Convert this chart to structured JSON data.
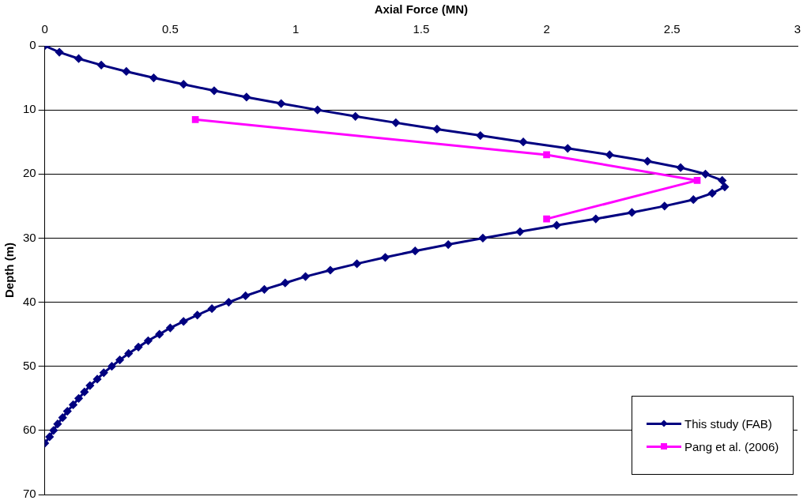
{
  "chart_data": {
    "type": "line",
    "xlabel": "Axial Force (MN)",
    "ylabel": "Depth (m)",
    "xlim": [
      0,
      3
    ],
    "xticks": [
      0,
      0.5,
      1,
      1.5,
      2,
      2.5,
      3
    ],
    "ylim": [
      70,
      0
    ],
    "yticks": [
      0,
      10,
      20,
      30,
      40,
      50,
      60,
      70
    ],
    "grid": "y",
    "legend": "bottom right",
    "series": [
      {
        "name": "This study (FAB)",
        "color": "#000080",
        "marker": "diamond",
        "x": [
          0,
          0.058,
          0.135,
          0.225,
          0.325,
          0.434,
          0.553,
          0.675,
          0.804,
          0.942,
          1.087,
          1.238,
          1.399,
          1.563,
          1.736,
          1.907,
          2.084,
          2.251,
          2.402,
          2.534,
          2.633,
          2.7,
          2.71,
          2.66,
          2.585,
          2.47,
          2.34,
          2.196,
          2.04,
          1.894,
          1.746,
          1.608,
          1.476,
          1.357,
          1.244,
          1.138,
          1.039,
          0.958,
          0.875,
          0.8,
          0.733,
          0.666,
          0.608,
          0.553,
          0.5,
          0.457,
          0.412,
          0.373,
          0.334,
          0.299,
          0.267,
          0.235,
          0.209,
          0.18,
          0.158,
          0.135,
          0.113,
          0.09,
          0.071,
          0.051,
          0.035,
          0.019,
          0
        ],
        "values": [
          0,
          1,
          2,
          3,
          4,
          5,
          6,
          7,
          8,
          9,
          10,
          11,
          12,
          13,
          14,
          15,
          16,
          17,
          18,
          19,
          20,
          21,
          22,
          23,
          24,
          25,
          26,
          27,
          28,
          29,
          30,
          31,
          32,
          33,
          34,
          35,
          36,
          37,
          38,
          39,
          40,
          41,
          42,
          43,
          44,
          45,
          46,
          47,
          48,
          49,
          50,
          51,
          52,
          53,
          54,
          55,
          56,
          57,
          58,
          59,
          60,
          61,
          62
        ]
      },
      {
        "name": "Pang et al. (2006)",
        "color": "#ff00ff",
        "marker": "square",
        "x": [
          0.6,
          2.0,
          2.6,
          2.0
        ],
        "values": [
          11.5,
          17,
          21,
          27
        ]
      }
    ]
  }
}
